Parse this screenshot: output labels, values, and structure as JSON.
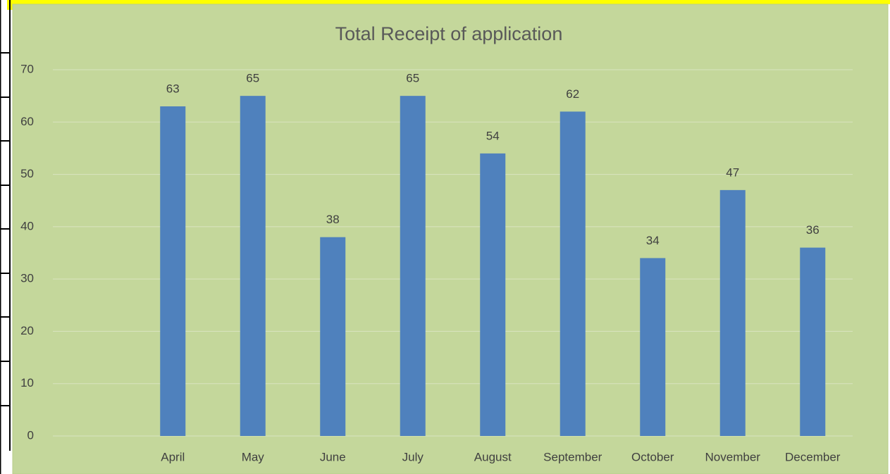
{
  "chart_data": {
    "type": "bar",
    "title": "Total Receipt of application",
    "categories": [
      null,
      "April",
      "May",
      "June",
      "July",
      "August",
      "September",
      "October",
      "November",
      "December"
    ],
    "values": [
      null,
      63,
      65,
      38,
      65,
      54,
      62,
      34,
      47,
      36
    ],
    "color": "#4f81bd",
    "ylim": [
      0,
      70
    ],
    "yticks": [
      0,
      10,
      20,
      30,
      40,
      50,
      60,
      70
    ],
    "grid": true
  }
}
